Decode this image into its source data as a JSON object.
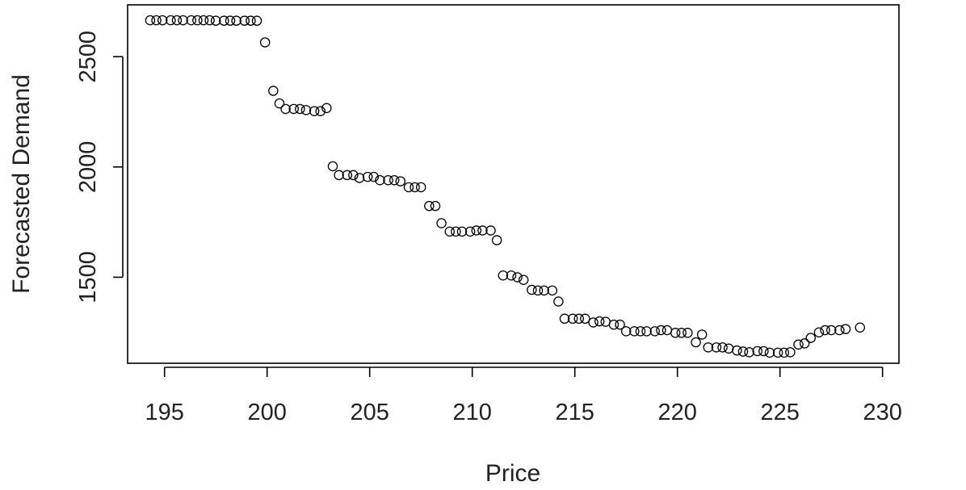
{
  "chart_data": {
    "type": "scatter",
    "title": "",
    "xlabel": "Price",
    "ylabel": "Forecasted Demand",
    "xlim": [
      193.2,
      230.8
    ],
    "ylim": [
      1110,
      2735
    ],
    "x_ticks": [
      195,
      200,
      205,
      210,
      215,
      220,
      225,
      230
    ],
    "y_ticks": [
      1500,
      2000,
      2500
    ],
    "grid": false,
    "marker": "open-circle",
    "colors": {
      "marker": "#000000",
      "axis": "#000000",
      "text": "#222222"
    },
    "series": [
      {
        "points": [
          [
            194.3,
            2665
          ],
          [
            194.6,
            2665
          ],
          [
            194.9,
            2665
          ],
          [
            195.3,
            2665
          ],
          [
            195.6,
            2665
          ],
          [
            195.9,
            2665
          ],
          [
            196.3,
            2665
          ],
          [
            196.6,
            2665
          ],
          [
            196.9,
            2665
          ],
          [
            197.2,
            2665
          ],
          [
            197.5,
            2663
          ],
          [
            197.9,
            2663
          ],
          [
            198.2,
            2663
          ],
          [
            198.5,
            2663
          ],
          [
            198.9,
            2663
          ],
          [
            199.2,
            2663
          ],
          [
            199.5,
            2663
          ],
          [
            199.9,
            2565
          ],
          [
            200.3,
            2345
          ],
          [
            200.6,
            2288
          ],
          [
            200.9,
            2263
          ],
          [
            201.3,
            2263
          ],
          [
            201.6,
            2263
          ],
          [
            201.9,
            2258
          ],
          [
            202.3,
            2253
          ],
          [
            202.6,
            2253
          ],
          [
            202.9,
            2267
          ],
          [
            203.2,
            2003
          ],
          [
            203.5,
            1963
          ],
          [
            203.9,
            1963
          ],
          [
            204.2,
            1963
          ],
          [
            204.5,
            1950
          ],
          [
            204.9,
            1955
          ],
          [
            205.2,
            1955
          ],
          [
            205.5,
            1940
          ],
          [
            205.9,
            1940
          ],
          [
            206.2,
            1940
          ],
          [
            206.5,
            1935
          ],
          [
            206.9,
            1908
          ],
          [
            207.2,
            1908
          ],
          [
            207.5,
            1908
          ],
          [
            207.9,
            1823
          ],
          [
            208.2,
            1823
          ],
          [
            208.5,
            1745
          ],
          [
            208.9,
            1707
          ],
          [
            209.2,
            1707
          ],
          [
            209.5,
            1707
          ],
          [
            209.9,
            1707
          ],
          [
            210.2,
            1712
          ],
          [
            210.5,
            1712
          ],
          [
            210.9,
            1712
          ],
          [
            211.2,
            1668
          ],
          [
            211.5,
            1508
          ],
          [
            211.9,
            1508
          ],
          [
            212.2,
            1500
          ],
          [
            212.5,
            1488
          ],
          [
            212.9,
            1443
          ],
          [
            213.2,
            1440
          ],
          [
            213.5,
            1440
          ],
          [
            213.9,
            1440
          ],
          [
            214.2,
            1390
          ],
          [
            214.5,
            1312
          ],
          [
            214.9,
            1312
          ],
          [
            215.2,
            1312
          ],
          [
            215.5,
            1312
          ],
          [
            215.9,
            1295
          ],
          [
            216.2,
            1300
          ],
          [
            216.5,
            1298
          ],
          [
            216.9,
            1285
          ],
          [
            217.2,
            1285
          ],
          [
            217.5,
            1255
          ],
          [
            217.9,
            1255
          ],
          [
            218.2,
            1255
          ],
          [
            218.5,
            1255
          ],
          [
            218.9,
            1255
          ],
          [
            219.2,
            1260
          ],
          [
            219.5,
            1260
          ],
          [
            219.9,
            1248
          ],
          [
            220.2,
            1248
          ],
          [
            220.5,
            1248
          ],
          [
            220.9,
            1205
          ],
          [
            221.2,
            1240
          ],
          [
            221.5,
            1182
          ],
          [
            221.9,
            1182
          ],
          [
            222.2,
            1182
          ],
          [
            222.5,
            1177
          ],
          [
            222.9,
            1168
          ],
          [
            223.2,
            1163
          ],
          [
            223.5,
            1160
          ],
          [
            223.9,
            1165
          ],
          [
            224.2,
            1165
          ],
          [
            224.5,
            1158
          ],
          [
            224.9,
            1158
          ],
          [
            225.2,
            1158
          ],
          [
            225.5,
            1160
          ],
          [
            225.9,
            1195
          ],
          [
            226.2,
            1200
          ],
          [
            226.5,
            1225
          ],
          [
            226.9,
            1250
          ],
          [
            227.2,
            1260
          ],
          [
            227.5,
            1260
          ],
          [
            227.9,
            1260
          ],
          [
            228.2,
            1265
          ],
          [
            228.9,
            1272
          ]
        ]
      }
    ]
  }
}
